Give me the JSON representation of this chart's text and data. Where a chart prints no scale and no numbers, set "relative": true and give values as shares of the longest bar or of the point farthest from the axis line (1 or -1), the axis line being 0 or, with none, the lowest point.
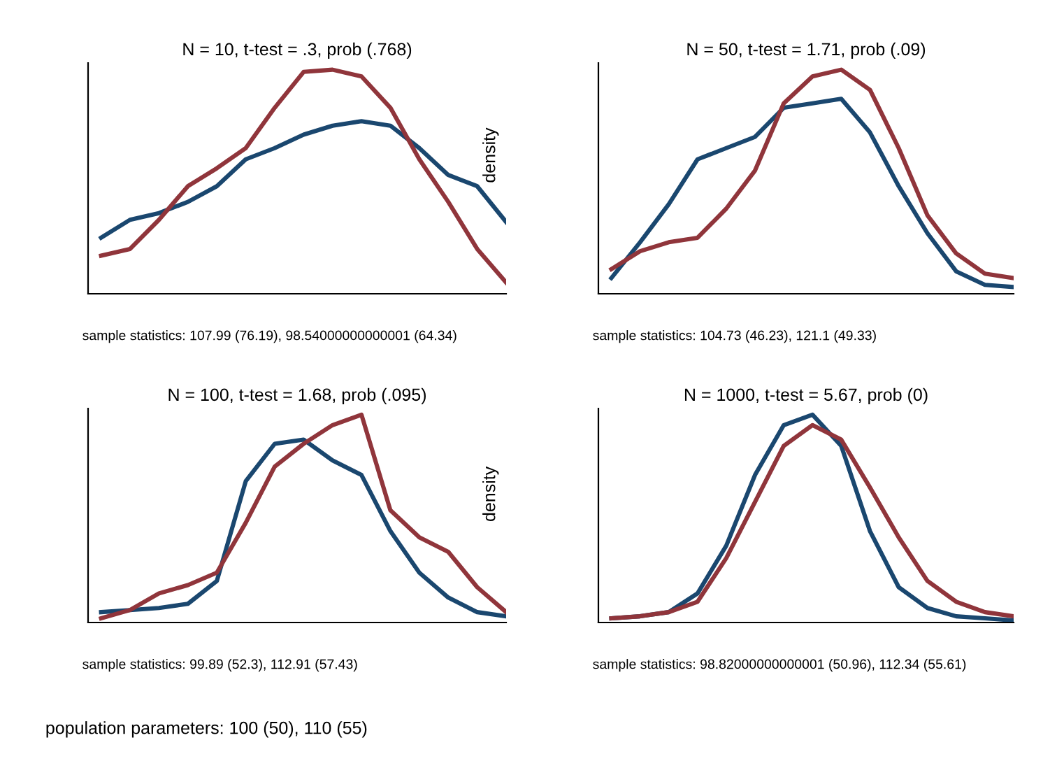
{
  "chart_data": [
    {
      "type": "line",
      "title": "N = 10, t-test = .3, prob (.768)",
      "relative": true,
      "categories": [
        null,
        null,
        null,
        null,
        null,
        null,
        null,
        null,
        null,
        null,
        null,
        null,
        null,
        null,
        null
      ],
      "series": [
        {
          "color": "#1a476f",
          "values": [
            0.25,
            0.33,
            0.36,
            0.41,
            0.48,
            0.6,
            0.65,
            0.71,
            0.75,
            0.77,
            0.75,
            0.65,
            0.53,
            0.48,
            0.32
          ]
        },
        {
          "color": "#90353b",
          "values": [
            0.17,
            0.2,
            0.33,
            0.48,
            0.56,
            0.65,
            0.83,
            0.99,
            1,
            0.97,
            0.83,
            0.6,
            0.41,
            0.2,
            0.05
          ]
        }
      ],
      "annotations": [
        "sample statistics: 107.99 (76.19), 98.54000000000001 (64.34)"
      ]
    },
    {
      "type": "line",
      "title": "N = 50, t-test = 1.71, prob (.09)",
      "ylabel": "density",
      "relative": true,
      "categories": [
        null,
        null,
        null,
        null,
        null,
        null,
        null,
        null,
        null,
        null,
        null,
        null,
        null,
        null,
        null
      ],
      "series": [
        {
          "color": "#1a476f",
          "values": [
            0.07,
            0.23,
            0.4,
            0.6,
            0.65,
            0.7,
            0.83,
            0.85,
            0.87,
            0.72,
            0.48,
            0.27,
            0.1,
            0.04,
            0.03
          ]
        },
        {
          "color": "#90353b",
          "values": [
            0.11,
            0.19,
            0.23,
            0.25,
            0.38,
            0.55,
            0.85,
            0.97,
            1,
            0.91,
            0.65,
            0.35,
            0.18,
            0.09,
            0.07
          ]
        }
      ],
      "annotations": [
        "sample statistics: 104.73 (46.23), 121.1 (49.33)"
      ]
    },
    {
      "type": "line",
      "title": "N = 100, t-test = 1.68, prob (.095)",
      "relative": true,
      "categories": [
        null,
        null,
        null,
        null,
        null,
        null,
        null,
        null,
        null,
        null,
        null,
        null,
        null,
        null,
        null
      ],
      "series": [
        {
          "color": "#1a476f",
          "values": [
            0.05,
            0.06,
            0.07,
            0.09,
            0.2,
            0.68,
            0.86,
            0.88,
            0.78,
            0.71,
            0.44,
            0.24,
            0.12,
            0.05,
            0.03
          ]
        },
        {
          "color": "#90353b",
          "values": [
            0.02,
            0.06,
            0.14,
            0.18,
            0.24,
            0.48,
            0.75,
            0.86,
            0.95,
            1,
            0.54,
            0.41,
            0.34,
            0.17,
            0.05
          ]
        }
      ],
      "annotations": [
        "sample statistics: 99.89 (52.3), 112.91 (57.43)",
        "population parameters: 100 (50), 110 (55)"
      ]
    },
    {
      "type": "line",
      "title": "N = 1000, t-test = 5.67, prob (0)",
      "ylabel": "density",
      "relative": true,
      "categories": [
        null,
        null,
        null,
        null,
        null,
        null,
        null,
        null,
        null,
        null,
        null,
        null,
        null,
        null,
        null
      ],
      "series": [
        {
          "color": "#1a476f",
          "values": [
            0.02,
            0.03,
            0.05,
            0.14,
            0.37,
            0.71,
            0.95,
            1,
            0.85,
            0.44,
            0.17,
            0.07,
            0.03,
            0.02,
            0.01
          ]
        },
        {
          "color": "#90353b",
          "values": [
            0.02,
            0.03,
            0.05,
            0.1,
            0.31,
            0.58,
            0.85,
            0.95,
            0.88,
            0.65,
            0.41,
            0.2,
            0.1,
            0.05,
            0.03
          ]
        }
      ],
      "annotations": [
        "sample statistics: 98.82000000000001 (50.96), 112.34 (55.61)"
      ]
    }
  ]
}
